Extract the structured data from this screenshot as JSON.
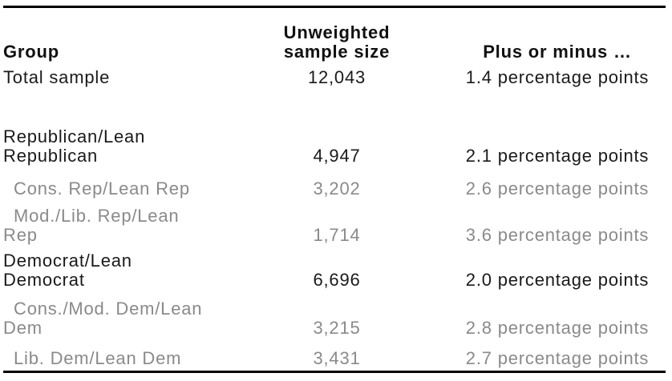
{
  "header": {
    "group": "Group",
    "sample_size": "Unweighted\nsample size",
    "margin": "Plus or minus …"
  },
  "rows": [
    {
      "group": "Total sample",
      "n": "12,043",
      "moe": "1.4 percentage points"
    },
    {
      "group": "Republican/Lean\nRepublican",
      "n": "4,947",
      "moe": "2.1 percentage points"
    },
    {
      "group": "Cons. Rep/Lean Rep",
      "n": "3,202",
      "moe": "2.6 percentage points"
    },
    {
      "group": "Mod./Lib. Rep/Lean\nRep",
      "n": "1,714",
      "moe": "3.6 percentage points"
    },
    {
      "group": "Democrat/Lean\nDemocrat",
      "n": "6,696",
      "moe": "2.0 percentage points"
    },
    {
      "group": "Cons./Mod. Dem/Lean\nDem",
      "n": "3,215",
      "moe": "2.8 percentage points"
    },
    {
      "group": "Lib. Dem/Lean Dem",
      "n": "3,431",
      "moe": "2.7 percentage points"
    }
  ],
  "colors": {
    "text_primary": "#1a1a1a",
    "text_secondary": "#8a8a8a",
    "rule": "#000000",
    "background": "#ffffff"
  },
  "chart_data": {
    "type": "table",
    "columns": [
      "Group",
      "Unweighted sample size",
      "Plus or minus …"
    ],
    "rows": [
      {
        "group": "Total sample",
        "unweighted_sample_size": 12043,
        "plus_or_minus_pct_points": 1.4,
        "subgroup": false
      },
      {
        "group": "Republican/Lean Republican",
        "unweighted_sample_size": 4947,
        "plus_or_minus_pct_points": 2.1,
        "subgroup": false
      },
      {
        "group": "Cons. Rep/Lean Rep",
        "unweighted_sample_size": 3202,
        "plus_or_minus_pct_points": 2.6,
        "subgroup": true
      },
      {
        "group": "Mod./Lib. Rep/Lean Rep",
        "unweighted_sample_size": 1714,
        "plus_or_minus_pct_points": 3.6,
        "subgroup": true
      },
      {
        "group": "Democrat/Lean Democrat",
        "unweighted_sample_size": 6696,
        "plus_or_minus_pct_points": 2.0,
        "subgroup": false
      },
      {
        "group": "Cons./Mod. Dem/Lean Dem",
        "unweighted_sample_size": 3215,
        "plus_or_minus_pct_points": 2.8,
        "subgroup": true
      },
      {
        "group": "Lib. Dem/Lean Dem",
        "unweighted_sample_size": 3431,
        "plus_or_minus_pct_points": 2.7,
        "subgroup": true
      }
    ]
  }
}
